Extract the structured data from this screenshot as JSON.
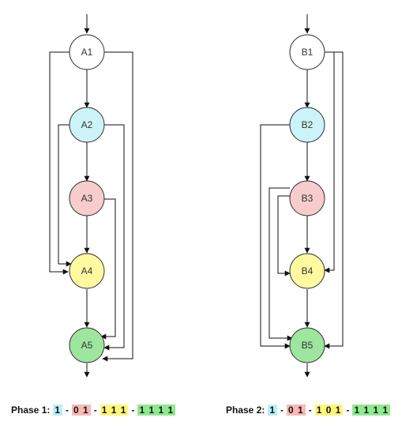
{
  "colors": {
    "white": "#ffffff",
    "cyan": "#ccf4f8",
    "red": "#f7cccc",
    "yellow": "#fffaa0",
    "green": "#9ee59e",
    "highlight_cyan": "#b8f0f6",
    "highlight_red": "#f9b8b8",
    "highlight_yellow": "#fdf77a",
    "highlight_green": "#8fea8f"
  },
  "graphs": [
    {
      "nodes": [
        {
          "label": "A1",
          "color": "white"
        },
        {
          "label": "A2",
          "color": "cyan"
        },
        {
          "label": "A3",
          "color": "red"
        },
        {
          "label": "A4",
          "color": "yellow"
        },
        {
          "label": "A5",
          "color": "green"
        }
      ]
    },
    {
      "nodes": [
        {
          "label": "B1",
          "color": "white"
        },
        {
          "label": "B2",
          "color": "cyan"
        },
        {
          "label": "B3",
          "color": "red"
        },
        {
          "label": "B4",
          "color": "yellow"
        },
        {
          "label": "B5",
          "color": "green"
        }
      ]
    }
  ],
  "captions": [
    {
      "label": "Phase 1:",
      "groups": [
        {
          "text": "1",
          "color": "highlight_cyan"
        },
        {
          "text": "0 1",
          "color": "highlight_red"
        },
        {
          "text": "1 1 1",
          "color": "highlight_yellow"
        },
        {
          "text": "1 1 1 1",
          "color": "highlight_green"
        }
      ]
    },
    {
      "label": "Phase 2:",
      "groups": [
        {
          "text": "1",
          "color": "highlight_cyan"
        },
        {
          "text": "0 1",
          "color": "highlight_red"
        },
        {
          "text": "1 0 1",
          "color": "highlight_yellow"
        },
        {
          "text": "1 1 1 1",
          "color": "highlight_green"
        }
      ]
    }
  ],
  "separator": "-"
}
